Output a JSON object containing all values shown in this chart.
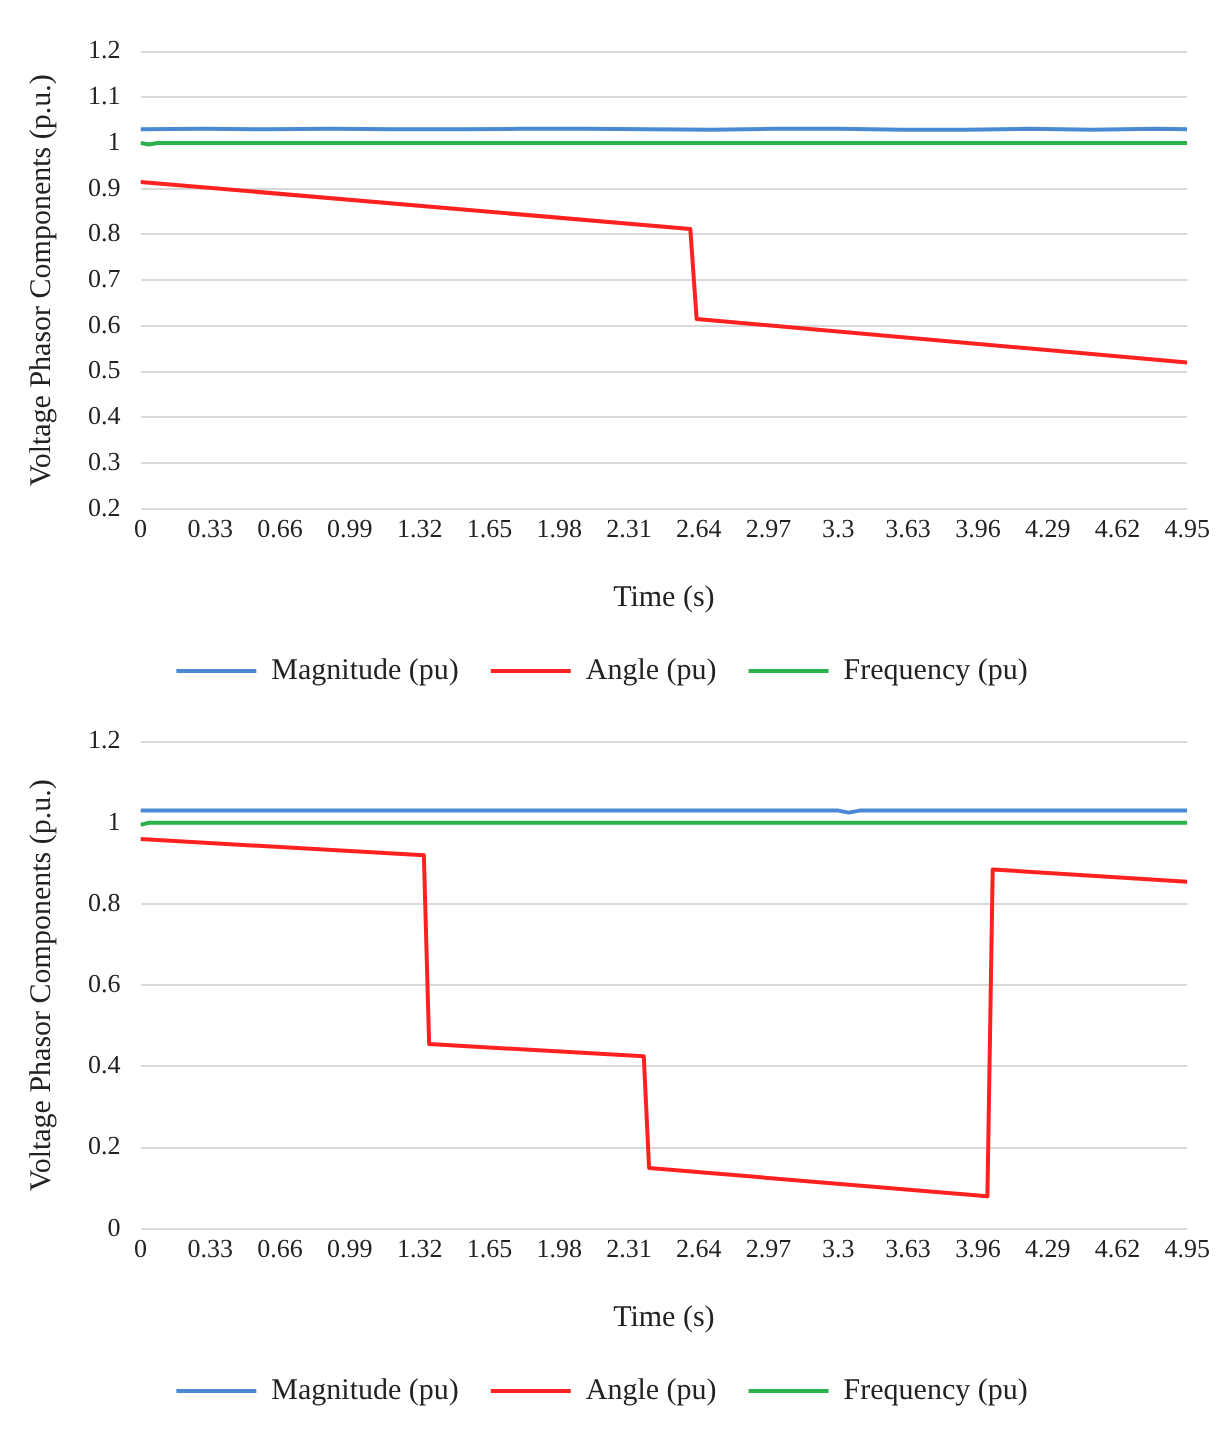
{
  "chart_data": [
    {
      "type": "line",
      "xlabel": "Time (s)",
      "ylabel": "Voltage Phasor Components (p.u.)",
      "xlim": [
        0,
        4.95
      ],
      "xticks": [
        0,
        0.33,
        0.66,
        0.99,
        1.32,
        1.65,
        1.98,
        2.31,
        2.64,
        2.97,
        3.3,
        3.63,
        3.96,
        4.29,
        4.62,
        4.95
      ],
      "ylim": [
        0.2,
        1.2
      ],
      "yticks": [
        0.2,
        0.3,
        0.4,
        0.5,
        0.6,
        0.7,
        0.8,
        0.9,
        1,
        1.1,
        1.2
      ],
      "grid": "y",
      "legend": "bottom",
      "marker": "none",
      "line_style": "solid",
      "series": [
        {
          "name": "Magnitude (pu)",
          "color": "#4a8ad4",
          "x": [
            0,
            0.3,
            0.6,
            0.9,
            1.2,
            1.5,
            1.8,
            2.1,
            2.4,
            2.7,
            3.0,
            3.3,
            3.6,
            3.9,
            4.2,
            4.5,
            4.8,
            4.95
          ],
          "values": [
            1.03,
            1.031,
            1.03,
            1.031,
            1.03,
            1.03,
            1.031,
            1.031,
            1.03,
            1.029,
            1.031,
            1.031,
            1.029,
            1.029,
            1.031,
            1.029,
            1.031,
            1.03
          ]
        },
        {
          "name": "Angle (pu)",
          "color": "#ff2020",
          "x": [
            0,
            2.6,
            2.63,
            4.95
          ],
          "values": [
            0.915,
            0.812,
            0.615,
            0.52
          ]
        },
        {
          "name": "Frequency (pu)",
          "color": "#2bb24c",
          "x": [
            0,
            0.04,
            0.08,
            4.95
          ],
          "values": [
            1.0,
            0.997,
            1.0,
            1.0
          ]
        }
      ]
    },
    {
      "type": "line",
      "xlabel": "Time (s)",
      "ylabel": "Voltage Phasor Components (p.u.)",
      "xlim": [
        0,
        4.95
      ],
      "xticks": [
        0,
        0.33,
        0.66,
        0.99,
        1.32,
        1.65,
        1.98,
        2.31,
        2.64,
        2.97,
        3.3,
        3.63,
        3.96,
        4.29,
        4.62,
        4.95
      ],
      "ylim": [
        0,
        1.2
      ],
      "yticks": [
        0,
        0.2,
        0.4,
        0.6,
        0.8,
        1,
        1.2
      ],
      "grid": "y",
      "legend": "bottom",
      "marker": "none",
      "line_style": "solid",
      "series": [
        {
          "name": "Magnitude (pu)",
          "color": "#4a8ad4",
          "x": [
            0,
            3.3,
            3.35,
            3.4,
            4.95
          ],
          "values": [
            1.03,
            1.03,
            1.025,
            1.03,
            1.03
          ]
        },
        {
          "name": "Angle (pu)",
          "color": "#ff2020",
          "x": [
            0,
            1.34,
            1.365,
            2.38,
            2.405,
            4.005,
            4.03,
            4.95
          ],
          "values": [
            0.96,
            0.92,
            0.455,
            0.425,
            0.15,
            0.08,
            0.885,
            0.855
          ]
        },
        {
          "name": "Frequency (pu)",
          "color": "#2bb24c",
          "x": [
            0,
            0.04,
            4.95
          ],
          "values": [
            0.995,
            1.0,
            1.0
          ]
        }
      ]
    }
  ]
}
